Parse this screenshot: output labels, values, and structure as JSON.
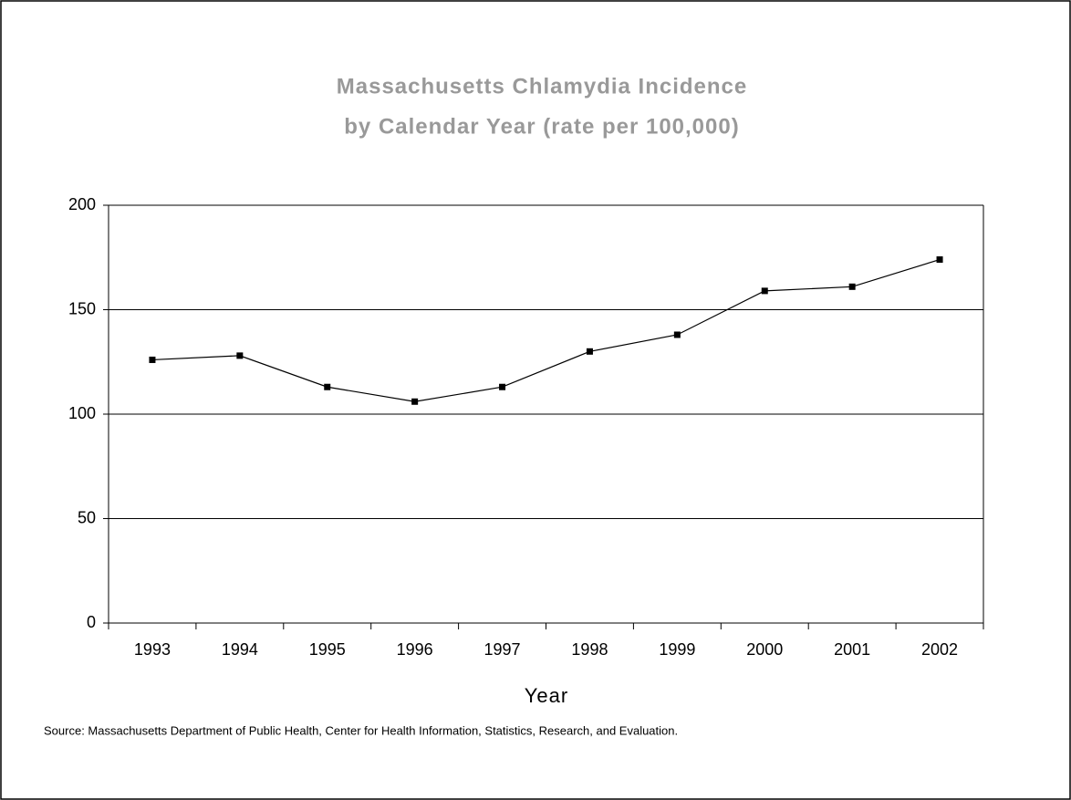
{
  "chart_data": {
    "type": "line",
    "title": "Massachusetts Chlamydia Incidence",
    "subtitle": "by Calendar Year (rate per 100,000)",
    "xlabel": "Year",
    "source": "Source: Massachusetts Department of Public Health, Center for Health Information, Statistics, Research, and Evaluation.",
    "categories": [
      "1993",
      "1994",
      "1995",
      "1996",
      "1997",
      "1998",
      "1999",
      "2000",
      "2001",
      "2002"
    ],
    "series": [
      {
        "name": null,
        "color": "#000000",
        "values": [
          126,
          128,
          113,
          106,
          113,
          130,
          138,
          159,
          161,
          174
        ]
      }
    ],
    "ylim": [
      0,
      200
    ],
    "yticks": [
      0,
      50,
      100,
      150,
      200
    ],
    "grid": true
  }
}
